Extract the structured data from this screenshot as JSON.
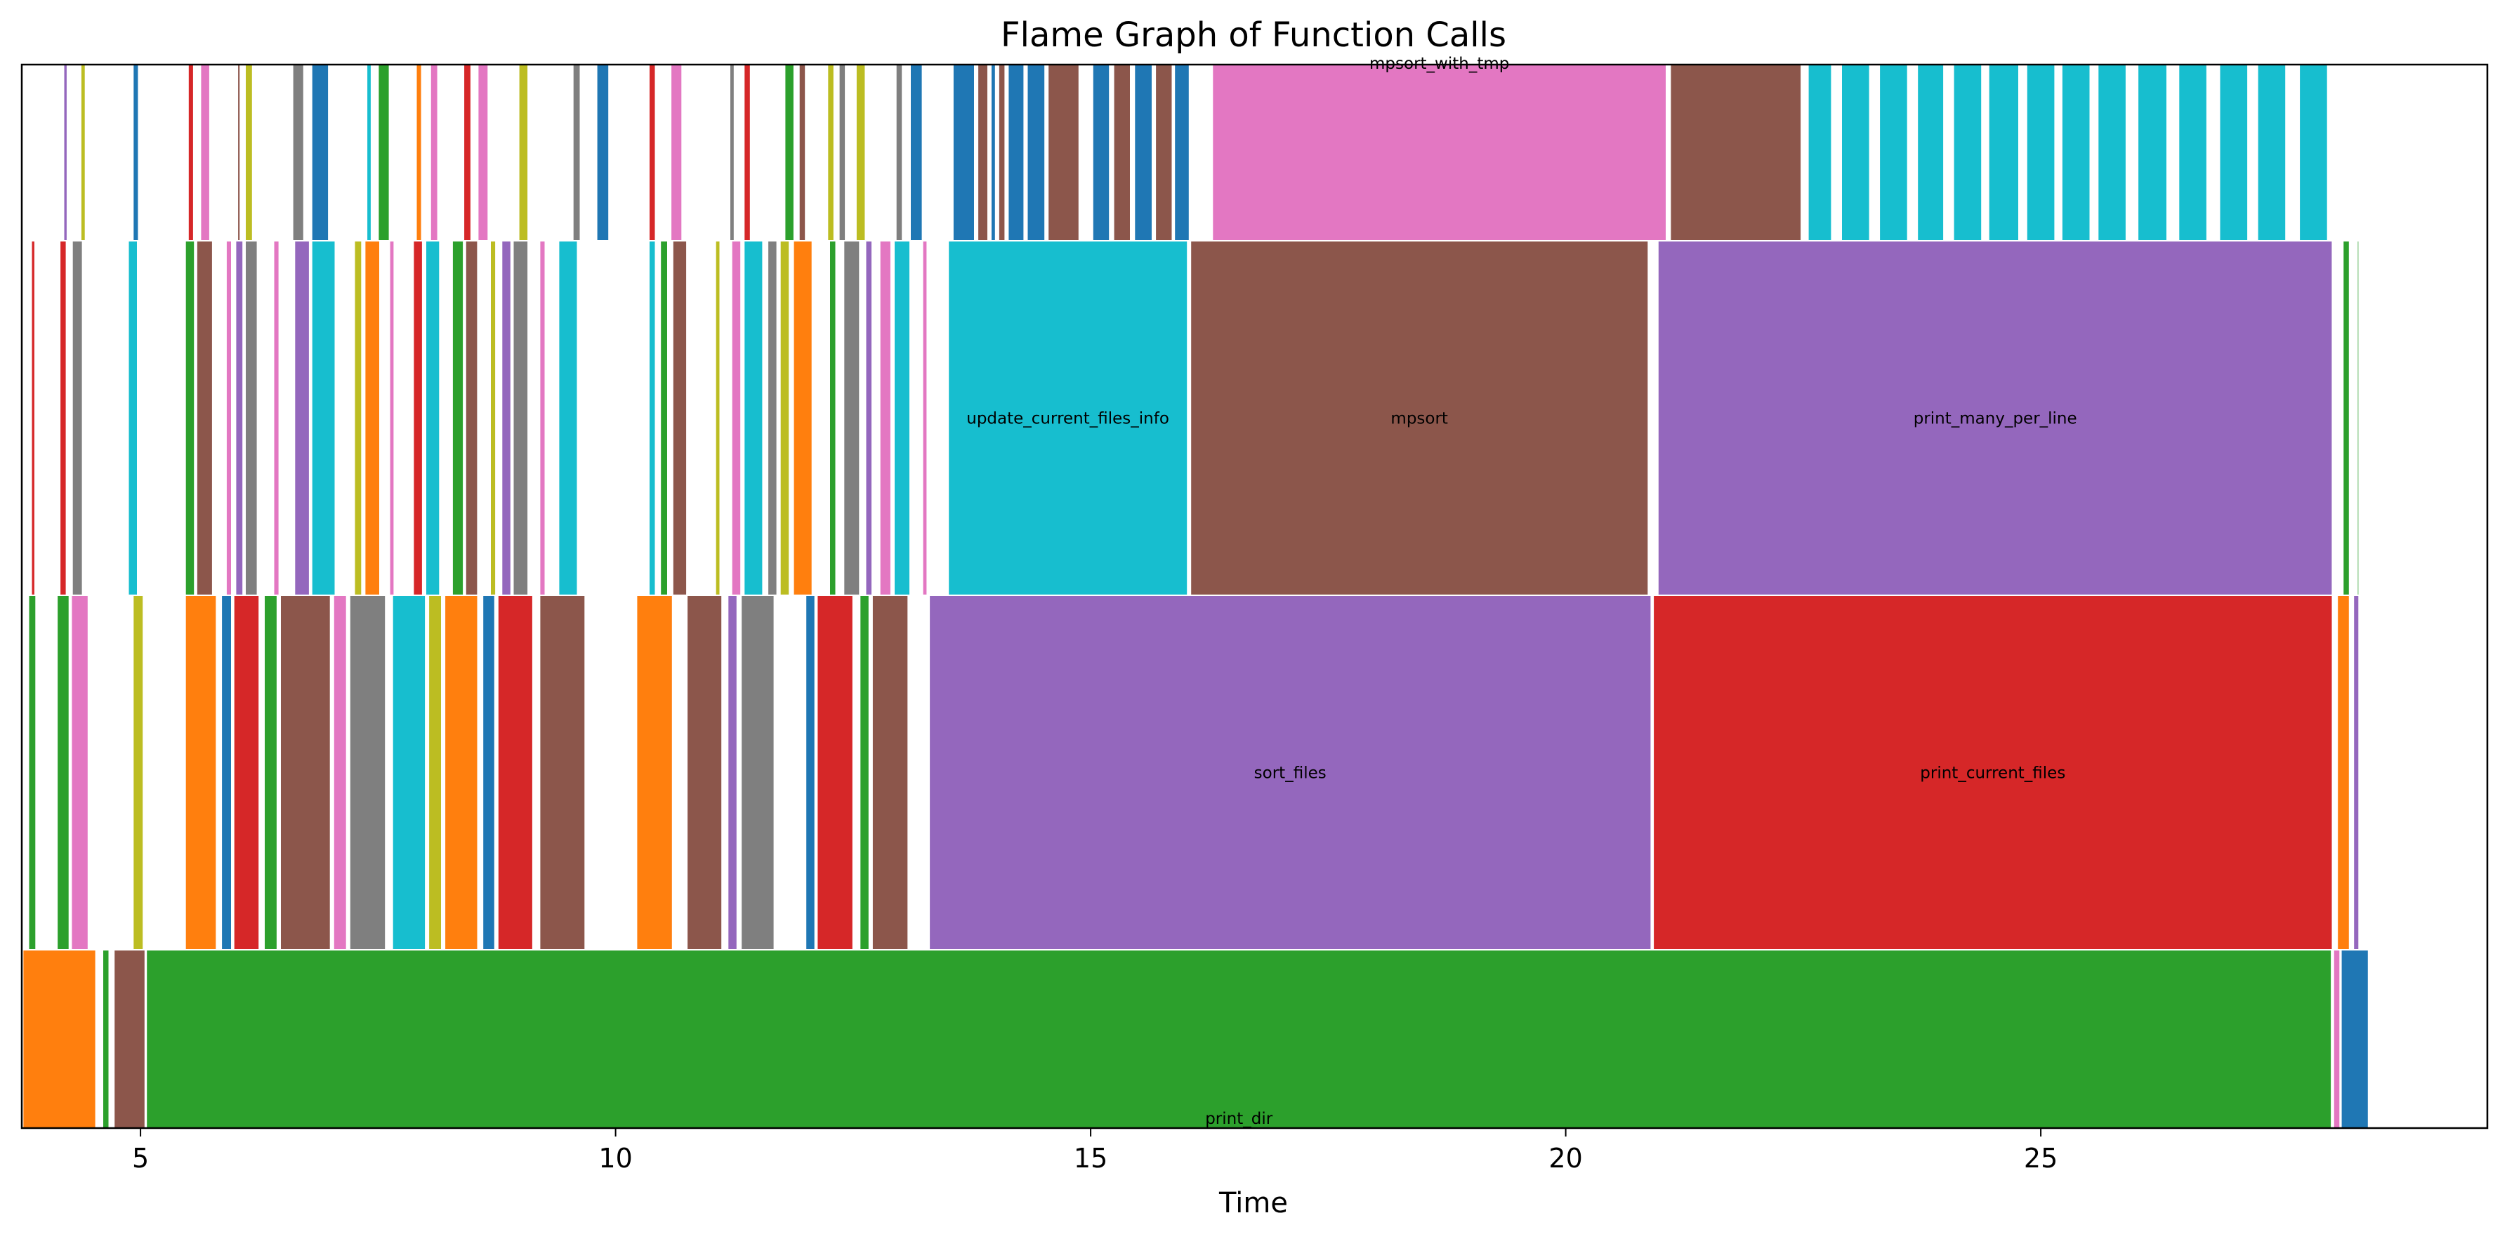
{
  "chart_data": {
    "type": "flame",
    "title": "Flame Graph of Function Calls",
    "xlabel": "Time",
    "xlim": [
      3.75,
      29.7
    ],
    "x_ticks": [
      5,
      10,
      15,
      20,
      25
    ],
    "levels": 4,
    "palette": [
      "#1f77b4",
      "#ff7f0e",
      "#2ca02c",
      "#d62728",
      "#9467bd",
      "#8c564b",
      "#e377c2",
      "#7f7f7f",
      "#bcbd22",
      "#17becf"
    ],
    "frames": [
      {
        "name": "",
        "level": 0,
        "start": 3.76,
        "end": 4.53,
        "color": "#ff7f0e"
      },
      {
        "name": "",
        "level": 0,
        "start": 4.6,
        "end": 4.67,
        "color": "#2ca02c"
      },
      {
        "name": "",
        "level": 0,
        "start": 4.72,
        "end": 5.05,
        "color": "#8c564b"
      },
      {
        "name": "print_dir",
        "level": 0,
        "start": 5.06,
        "end": 28.06,
        "color": "#2ca02c"
      },
      {
        "name": "",
        "level": 0,
        "start": 28.08,
        "end": 28.15,
        "color": "#e377c2"
      },
      {
        "name": "",
        "level": 0,
        "start": 28.16,
        "end": 28.45,
        "color": "#1f77b4"
      },
      {
        "name": "",
        "level": 1,
        "start": 3.82,
        "end": 3.9,
        "color": "#2ca02c"
      },
      {
        "name": "",
        "level": 1,
        "start": 4.12,
        "end": 4.25,
        "color": "#2ca02c"
      },
      {
        "name": "",
        "level": 1,
        "start": 4.27,
        "end": 4.45,
        "color": "#e377c2"
      },
      {
        "name": "",
        "level": 1,
        "start": 4.92,
        "end": 5.03,
        "color": "#bcbd22"
      },
      {
        "name": "",
        "level": 1,
        "start": 5.47,
        "end": 5.8,
        "color": "#ff7f0e"
      },
      {
        "name": "",
        "level": 1,
        "start": 5.85,
        "end": 5.96,
        "color": "#1f77b4"
      },
      {
        "name": "",
        "level": 1,
        "start": 5.98,
        "end": 6.25,
        "color": "#d62728"
      },
      {
        "name": "",
        "level": 1,
        "start": 6.3,
        "end": 6.44,
        "color": "#2ca02c"
      },
      {
        "name": "",
        "level": 1,
        "start": 6.47,
        "end": 7.0,
        "color": "#8c564b"
      },
      {
        "name": "",
        "level": 1,
        "start": 7.03,
        "end": 7.17,
        "color": "#e377c2"
      },
      {
        "name": "",
        "level": 1,
        "start": 7.2,
        "end": 7.58,
        "color": "#7f7f7f"
      },
      {
        "name": "",
        "level": 1,
        "start": 7.65,
        "end": 8.0,
        "color": "#17becf"
      },
      {
        "name": "",
        "level": 1,
        "start": 8.03,
        "end": 8.17,
        "color": "#bcbd22"
      },
      {
        "name": "",
        "level": 1,
        "start": 8.2,
        "end": 8.55,
        "color": "#ff7f0e"
      },
      {
        "name": "",
        "level": 1,
        "start": 8.6,
        "end": 8.73,
        "color": "#1f77b4"
      },
      {
        "name": "",
        "level": 1,
        "start": 8.76,
        "end": 9.13,
        "color": "#d62728"
      },
      {
        "name": "",
        "level": 1,
        "start": 9.2,
        "end": 9.68,
        "color": "#8c564b"
      },
      {
        "name": "",
        "level": 1,
        "start": 10.22,
        "end": 10.6,
        "color": "#ff7f0e"
      },
      {
        "name": "",
        "level": 1,
        "start": 10.75,
        "end": 11.12,
        "color": "#8c564b"
      },
      {
        "name": "",
        "level": 1,
        "start": 11.18,
        "end": 11.28,
        "color": "#9467bd"
      },
      {
        "name": "",
        "level": 1,
        "start": 11.32,
        "end": 11.67,
        "color": "#7f7f7f"
      },
      {
        "name": "",
        "level": 1,
        "start": 12.0,
        "end": 12.1,
        "color": "#1f77b4"
      },
      {
        "name": "",
        "level": 1,
        "start": 12.12,
        "end": 12.5,
        "color": "#d62728"
      },
      {
        "name": "",
        "level": 1,
        "start": 12.57,
        "end": 12.67,
        "color": "#2ca02c"
      },
      {
        "name": "",
        "level": 1,
        "start": 12.7,
        "end": 13.08,
        "color": "#8c564b"
      },
      {
        "name": "sort_files",
        "level": 1,
        "start": 13.3,
        "end": 20.9,
        "color": "#9467bd"
      },
      {
        "name": "print_current_files",
        "level": 1,
        "start": 20.92,
        "end": 28.07,
        "color": "#d62728"
      },
      {
        "name": "",
        "level": 1,
        "start": 28.12,
        "end": 28.25,
        "color": "#ff7f0e"
      },
      {
        "name": "",
        "level": 1,
        "start": 28.29,
        "end": 28.35,
        "color": "#9467bd"
      },
      {
        "name": "",
        "level": 2,
        "start": 3.85,
        "end": 3.89,
        "color": "#d62728"
      },
      {
        "name": "",
        "level": 2,
        "start": 4.15,
        "end": 4.22,
        "color": "#d62728"
      },
      {
        "name": "",
        "level": 2,
        "start": 4.28,
        "end": 4.39,
        "color": "#7f7f7f"
      },
      {
        "name": "",
        "level": 2,
        "start": 4.87,
        "end": 4.97,
        "color": "#17becf"
      },
      {
        "name": "",
        "level": 2,
        "start": 5.47,
        "end": 5.57,
        "color": "#2ca02c"
      },
      {
        "name": "",
        "level": 2,
        "start": 5.59,
        "end": 5.76,
        "color": "#8c564b"
      },
      {
        "name": "",
        "level": 2,
        "start": 5.9,
        "end": 5.96,
        "color": "#e377c2"
      },
      {
        "name": "",
        "level": 2,
        "start": 6.0,
        "end": 6.08,
        "color": "#9467bd"
      },
      {
        "name": "",
        "level": 2,
        "start": 6.1,
        "end": 6.23,
        "color": "#7f7f7f"
      },
      {
        "name": "",
        "level": 2,
        "start": 6.4,
        "end": 6.46,
        "color": "#e377c2"
      },
      {
        "name": "",
        "level": 2,
        "start": 6.62,
        "end": 6.78,
        "color": "#9467bd"
      },
      {
        "name": "",
        "level": 2,
        "start": 6.8,
        "end": 7.05,
        "color": "#17becf"
      },
      {
        "name": "",
        "level": 2,
        "start": 7.25,
        "end": 7.33,
        "color": "#bcbd22"
      },
      {
        "name": "",
        "level": 2,
        "start": 7.36,
        "end": 7.52,
        "color": "#ff7f0e"
      },
      {
        "name": "",
        "level": 2,
        "start": 7.62,
        "end": 7.67,
        "color": "#e377c2"
      },
      {
        "name": "",
        "level": 2,
        "start": 7.87,
        "end": 7.97,
        "color": "#d62728"
      },
      {
        "name": "",
        "level": 2,
        "start": 8.0,
        "end": 8.15,
        "color": "#17becf"
      },
      {
        "name": "",
        "level": 2,
        "start": 8.28,
        "end": 8.4,
        "color": "#2ca02c"
      },
      {
        "name": "",
        "level": 2,
        "start": 8.42,
        "end": 8.55,
        "color": "#8c564b"
      },
      {
        "name": "",
        "level": 2,
        "start": 8.68,
        "end": 8.74,
        "color": "#bcbd22"
      },
      {
        "name": "",
        "level": 2,
        "start": 8.8,
        "end": 8.9,
        "color": "#9467bd"
      },
      {
        "name": "",
        "level": 2,
        "start": 8.92,
        "end": 9.08,
        "color": "#7f7f7f"
      },
      {
        "name": "",
        "level": 2,
        "start": 9.2,
        "end": 9.26,
        "color": "#e377c2"
      },
      {
        "name": "",
        "level": 2,
        "start": 9.4,
        "end": 9.6,
        "color": "#17becf"
      },
      {
        "name": "",
        "level": 2,
        "start": 10.35,
        "end": 10.42,
        "color": "#17becf"
      },
      {
        "name": "",
        "level": 2,
        "start": 10.47,
        "end": 10.55,
        "color": "#2ca02c"
      },
      {
        "name": "",
        "level": 2,
        "start": 10.6,
        "end": 10.75,
        "color": "#8c564b"
      },
      {
        "name": "",
        "level": 2,
        "start": 11.05,
        "end": 11.1,
        "color": "#bcbd22"
      },
      {
        "name": "",
        "level": 2,
        "start": 11.22,
        "end": 11.32,
        "color": "#e377c2"
      },
      {
        "name": "",
        "level": 2,
        "start": 11.35,
        "end": 11.55,
        "color": "#17becf"
      },
      {
        "name": "",
        "level": 2,
        "start": 11.6,
        "end": 11.7,
        "color": "#7f7f7f"
      },
      {
        "name": "",
        "level": 2,
        "start": 11.73,
        "end": 11.83,
        "color": "#bcbd22"
      },
      {
        "name": "",
        "level": 2,
        "start": 11.87,
        "end": 12.07,
        "color": "#ff7f0e"
      },
      {
        "name": "",
        "level": 2,
        "start": 12.25,
        "end": 12.32,
        "color": "#2ca02c"
      },
      {
        "name": "",
        "level": 2,
        "start": 12.4,
        "end": 12.57,
        "color": "#7f7f7f"
      },
      {
        "name": "",
        "level": 2,
        "start": 12.63,
        "end": 12.7,
        "color": "#9467bd"
      },
      {
        "name": "",
        "level": 2,
        "start": 12.78,
        "end": 12.9,
        "color": "#e377c2"
      },
      {
        "name": "",
        "level": 2,
        "start": 12.93,
        "end": 13.1,
        "color": "#17becf"
      },
      {
        "name": "",
        "level": 2,
        "start": 13.23,
        "end": 13.28,
        "color": "#e377c2"
      },
      {
        "name": "update_current_files_info",
        "level": 2,
        "start": 13.5,
        "end": 16.02,
        "color": "#17becf"
      },
      {
        "name": "mpsort",
        "level": 2,
        "start": 16.05,
        "end": 20.87,
        "color": "#8c564b"
      },
      {
        "name": "print_many_per_line",
        "level": 2,
        "start": 20.97,
        "end": 28.07,
        "color": "#9467bd"
      },
      {
        "name": "",
        "level": 2,
        "start": 28.18,
        "end": 28.25,
        "color": "#2ca02c"
      },
      {
        "name": "",
        "level": 2,
        "start": 28.33,
        "end": 28.35,
        "color": "#2ca02c"
      },
      {
        "name": "",
        "level": 3,
        "start": 4.19,
        "end": 4.23,
        "color": "#9467bd"
      },
      {
        "name": "",
        "level": 3,
        "start": 4.37,
        "end": 4.42,
        "color": "#bcbd22"
      },
      {
        "name": "",
        "level": 3,
        "start": 4.92,
        "end": 4.98,
        "color": "#1f77b4"
      },
      {
        "name": "",
        "level": 3,
        "start": 5.5,
        "end": 5.56,
        "color": "#d62728"
      },
      {
        "name": "",
        "level": 3,
        "start": 5.63,
        "end": 5.73,
        "color": "#e377c2"
      },
      {
        "name": "",
        "level": 3,
        "start": 6.02,
        "end": 6.05,
        "color": "#8c564b"
      },
      {
        "name": "",
        "level": 3,
        "start": 6.1,
        "end": 6.18,
        "color": "#bcbd22"
      },
      {
        "name": "",
        "level": 3,
        "start": 6.6,
        "end": 6.72,
        "color": "#7f7f7f"
      },
      {
        "name": "",
        "level": 3,
        "start": 6.8,
        "end": 6.98,
        "color": "#1f77b4"
      },
      {
        "name": "",
        "level": 3,
        "start": 7.38,
        "end": 7.43,
        "color": "#17becf"
      },
      {
        "name": "",
        "level": 3,
        "start": 7.5,
        "end": 7.62,
        "color": "#2ca02c"
      },
      {
        "name": "",
        "level": 3,
        "start": 7.9,
        "end": 7.96,
        "color": "#ff7f0e"
      },
      {
        "name": "",
        "level": 3,
        "start": 8.05,
        "end": 8.13,
        "color": "#e377c2"
      },
      {
        "name": "",
        "level": 3,
        "start": 8.4,
        "end": 8.48,
        "color": "#d62728"
      },
      {
        "name": "",
        "level": 3,
        "start": 8.55,
        "end": 8.66,
        "color": "#e377c2"
      },
      {
        "name": "",
        "level": 3,
        "start": 8.98,
        "end": 9.08,
        "color": "#bcbd22"
      },
      {
        "name": "",
        "level": 3,
        "start": 9.55,
        "end": 9.63,
        "color": "#7f7f7f"
      },
      {
        "name": "",
        "level": 3,
        "start": 9.8,
        "end": 9.93,
        "color": "#1f77b4"
      },
      {
        "name": "",
        "level": 3,
        "start": 10.35,
        "end": 10.42,
        "color": "#d62728"
      },
      {
        "name": "",
        "level": 3,
        "start": 10.58,
        "end": 10.7,
        "color": "#e377c2"
      },
      {
        "name": "",
        "level": 3,
        "start": 11.2,
        "end": 11.25,
        "color": "#7f7f7f"
      },
      {
        "name": "",
        "level": 3,
        "start": 11.35,
        "end": 11.42,
        "color": "#d62728"
      },
      {
        "name": "",
        "level": 3,
        "start": 11.78,
        "end": 11.88,
        "color": "#2ca02c"
      },
      {
        "name": "",
        "level": 3,
        "start": 11.93,
        "end": 12.0,
        "color": "#8c564b"
      },
      {
        "name": "",
        "level": 3,
        "start": 12.23,
        "end": 12.3,
        "color": "#bcbd22"
      },
      {
        "name": "",
        "level": 3,
        "start": 12.35,
        "end": 12.42,
        "color": "#7f7f7f"
      },
      {
        "name": "",
        "level": 3,
        "start": 12.53,
        "end": 12.63,
        "color": "#bcbd22"
      },
      {
        "name": "",
        "level": 3,
        "start": 12.95,
        "end": 13.02,
        "color": "#7f7f7f"
      },
      {
        "name": "",
        "level": 3,
        "start": 13.1,
        "end": 13.23,
        "color": "#1f77b4"
      },
      {
        "name": "",
        "level": 3,
        "start": 13.55,
        "end": 13.78,
        "color": "#1f77b4"
      },
      {
        "name": "",
        "level": 3,
        "start": 13.81,
        "end": 13.92,
        "color": "#8c564b"
      },
      {
        "name": "",
        "level": 3,
        "start": 13.95,
        "end": 14.0,
        "color": "#1f77b4"
      },
      {
        "name": "",
        "level": 3,
        "start": 14.03,
        "end": 14.1,
        "color": "#8c564b"
      },
      {
        "name": "",
        "level": 3,
        "start": 14.13,
        "end": 14.3,
        "color": "#1f77b4"
      },
      {
        "name": "",
        "level": 3,
        "start": 14.33,
        "end": 14.52,
        "color": "#1f77b4"
      },
      {
        "name": "",
        "level": 3,
        "start": 14.55,
        "end": 14.88,
        "color": "#8c564b"
      },
      {
        "name": "",
        "level": 3,
        "start": 15.02,
        "end": 15.2,
        "color": "#1f77b4"
      },
      {
        "name": "",
        "level": 3,
        "start": 15.24,
        "end": 15.42,
        "color": "#8c564b"
      },
      {
        "name": "",
        "level": 3,
        "start": 15.46,
        "end": 15.65,
        "color": "#1f77b4"
      },
      {
        "name": "",
        "level": 3,
        "start": 15.68,
        "end": 15.86,
        "color": "#8c564b"
      },
      {
        "name": "",
        "level": 3,
        "start": 15.88,
        "end": 16.04,
        "color": "#1f77b4"
      },
      {
        "name": "mpsort_with_tmp",
        "level": 3,
        "start": 16.28,
        "end": 21.06,
        "color": "#e377c2"
      },
      {
        "name": "",
        "level": 3,
        "start": 21.1,
        "end": 22.48,
        "color": "#8c564b"
      },
      {
        "name": "",
        "level": 3,
        "start": 22.55,
        "end": 22.8,
        "color": "#17becf"
      },
      {
        "name": "",
        "level": 3,
        "start": 22.9,
        "end": 23.2,
        "color": "#17becf"
      },
      {
        "name": "",
        "level": 3,
        "start": 23.3,
        "end": 23.6,
        "color": "#17becf"
      },
      {
        "name": "",
        "level": 3,
        "start": 23.7,
        "end": 23.98,
        "color": "#17becf"
      },
      {
        "name": "",
        "level": 3,
        "start": 24.08,
        "end": 24.38,
        "color": "#17becf"
      },
      {
        "name": "",
        "level": 3,
        "start": 24.45,
        "end": 24.77,
        "color": "#17becf"
      },
      {
        "name": "",
        "level": 3,
        "start": 24.85,
        "end": 25.15,
        "color": "#17becf"
      },
      {
        "name": "",
        "level": 3,
        "start": 25.22,
        "end": 25.52,
        "color": "#17becf"
      },
      {
        "name": "",
        "level": 3,
        "start": 25.6,
        "end": 25.9,
        "color": "#17becf"
      },
      {
        "name": "",
        "level": 3,
        "start": 26.02,
        "end": 26.33,
        "color": "#17becf"
      },
      {
        "name": "",
        "level": 3,
        "start": 26.45,
        "end": 26.75,
        "color": "#17becf"
      },
      {
        "name": "",
        "level": 3,
        "start": 26.88,
        "end": 27.18,
        "color": "#17becf"
      },
      {
        "name": "",
        "level": 3,
        "start": 27.28,
        "end": 27.58,
        "color": "#17becf"
      },
      {
        "name": "",
        "level": 3,
        "start": 27.72,
        "end": 28.02,
        "color": "#17becf"
      }
    ]
  }
}
